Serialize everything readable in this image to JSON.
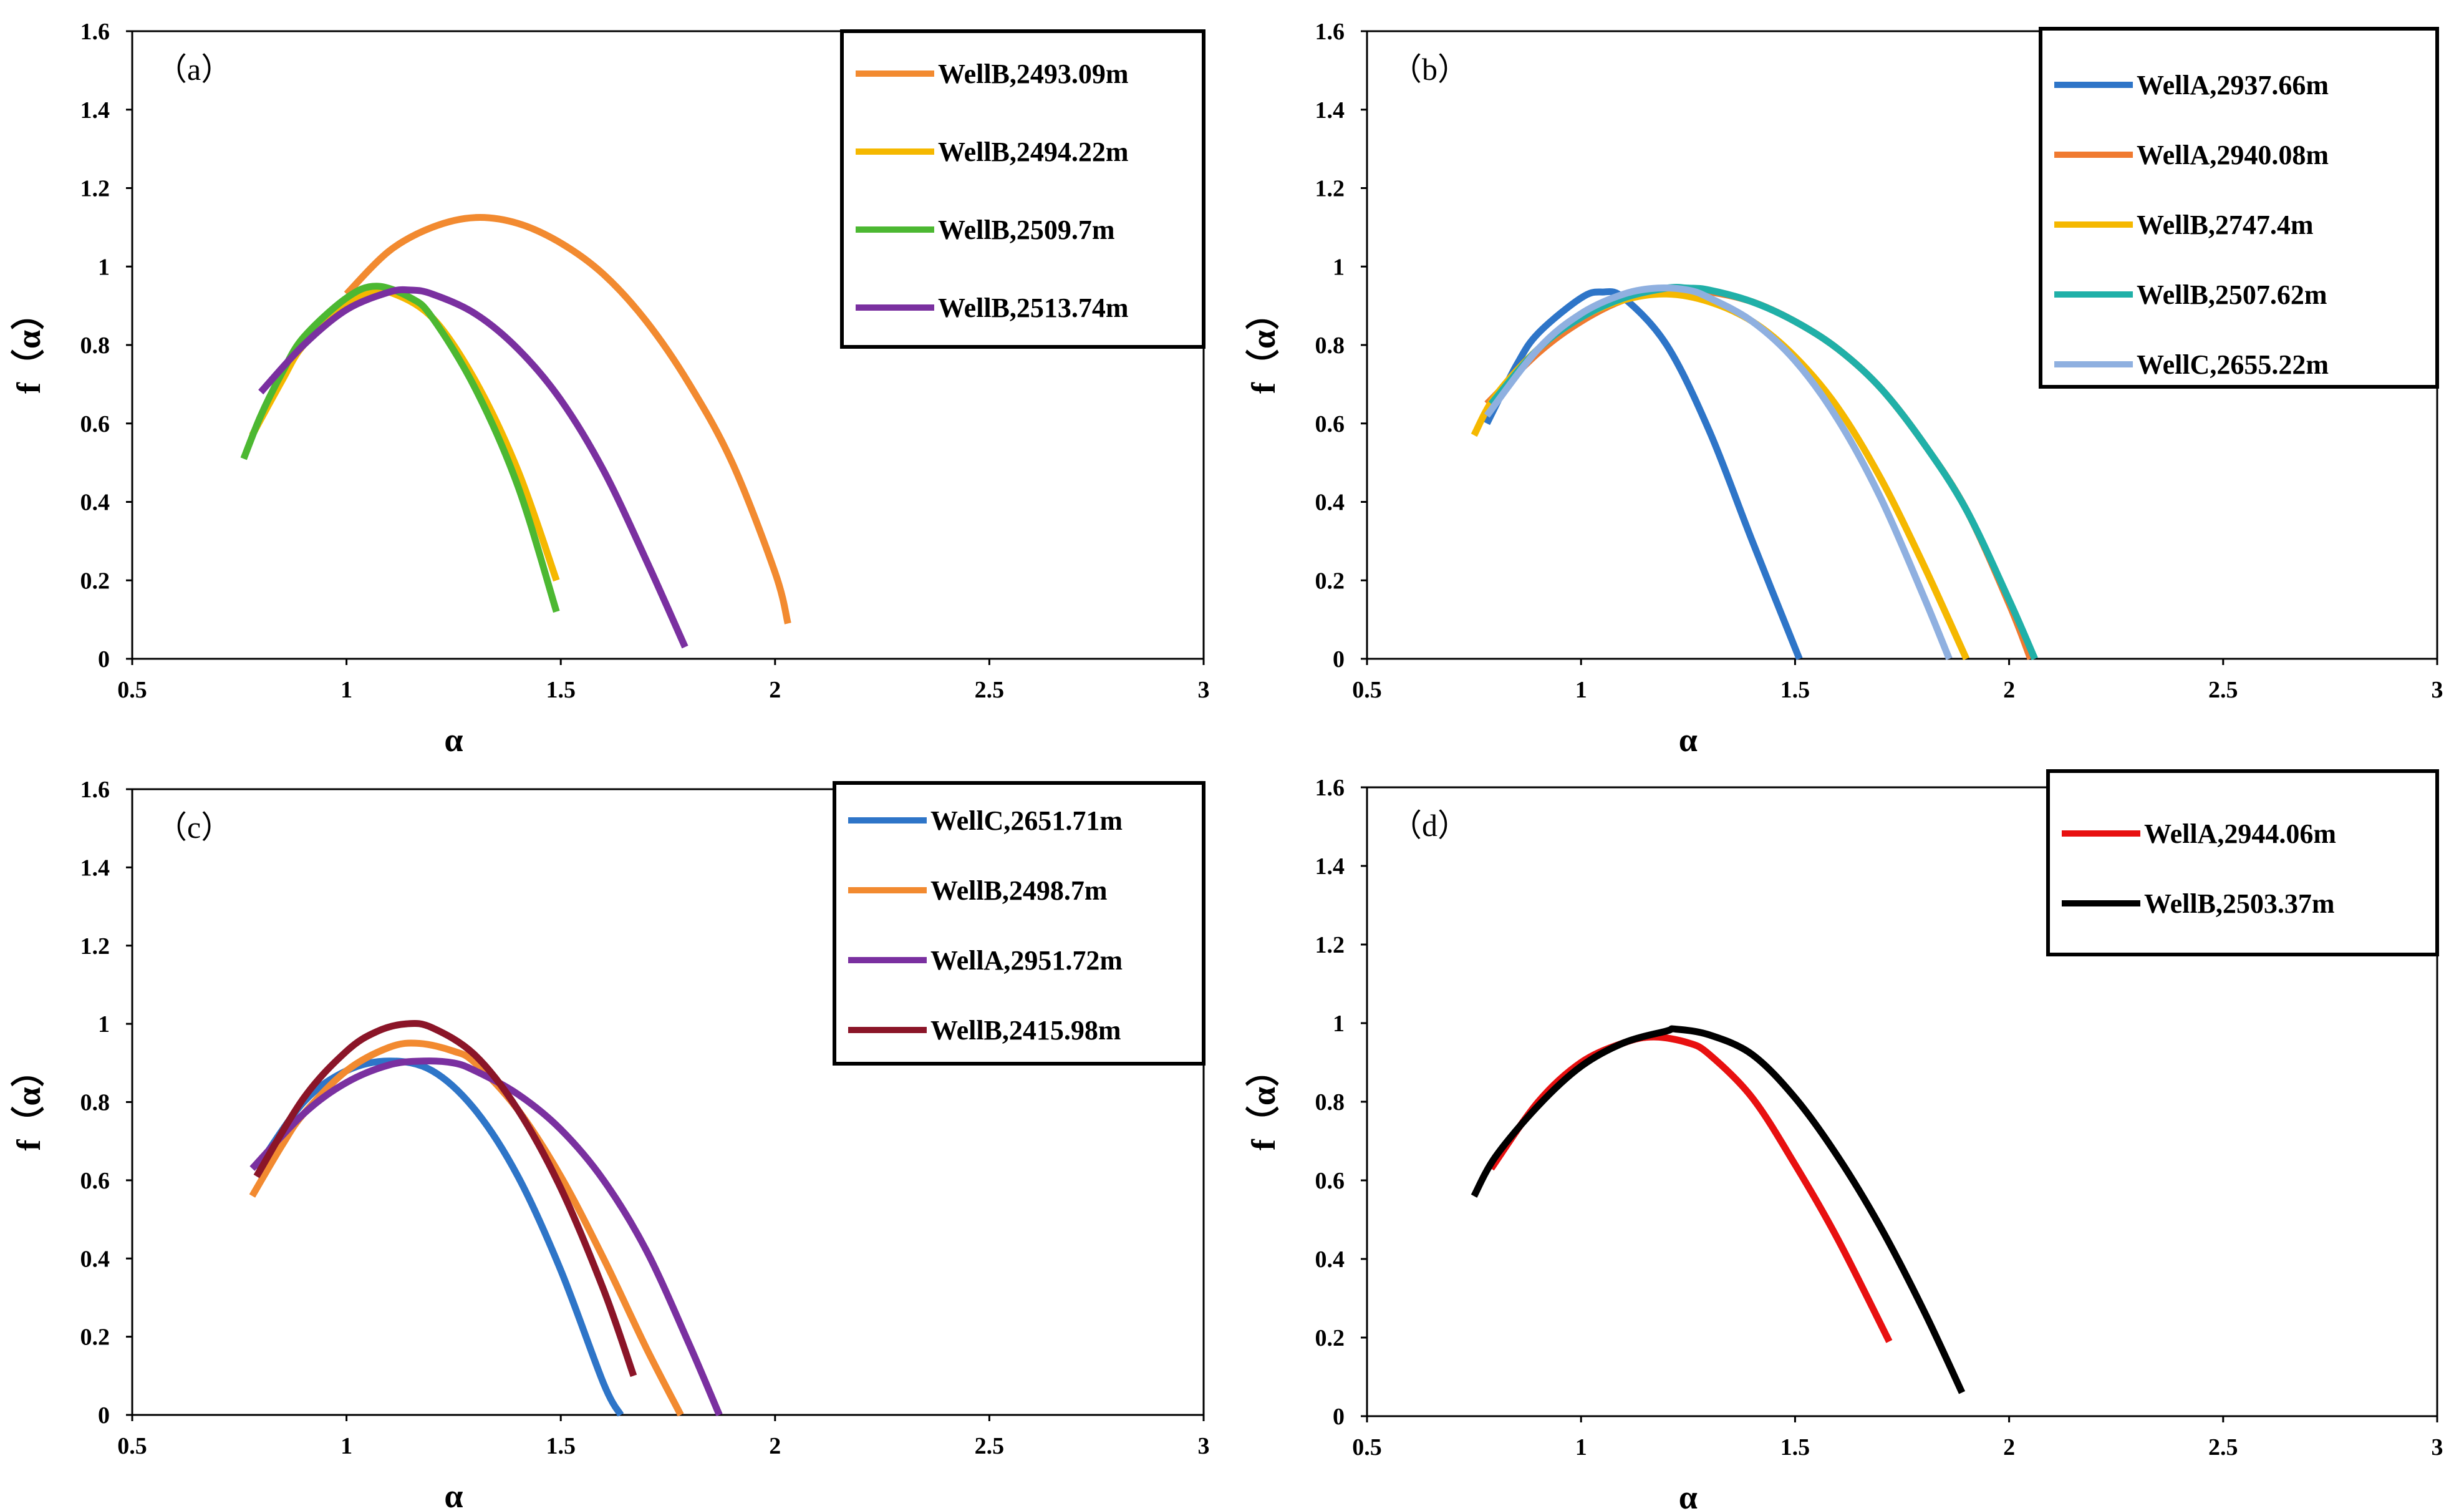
{
  "chart_data": [
    {
      "type": "line",
      "panel_label": "(a)",
      "xlabel": "α",
      "ylabel": "f（α）",
      "xlim": [
        0.5,
        3
      ],
      "ylim": [
        0,
        1.6
      ],
      "xticks": [
        "0.5",
        "1",
        "1.5",
        "2",
        "2.5",
        "3"
      ],
      "yticks": [
        "0",
        "0.2",
        "0.4",
        "0.6",
        "0.8",
        "1",
        "1.2",
        "1.4",
        "1.6"
      ],
      "legend_position": "top-right",
      "grid": false,
      "series": [
        {
          "name": "WellB,2493.09m",
          "color": "#F28A30",
          "x": [
            1.0,
            1.1,
            1.2,
            1.3,
            1.4,
            1.5,
            1.6,
            1.7,
            1.8,
            1.9,
            2.0,
            2.03
          ],
          "y": [
            0.93,
            1.04,
            1.1,
            1.125,
            1.11,
            1.06,
            0.98,
            0.86,
            0.7,
            0.5,
            0.22,
            0.09
          ]
        },
        {
          "name": "WellB,2494.22m",
          "color": "#F5B800",
          "x": [
            0.78,
            0.85,
            0.9,
            1.0,
            1.05,
            1.1,
            1.2,
            1.3,
            1.4,
            1.49
          ],
          "y": [
            0.57,
            0.71,
            0.8,
            0.9,
            0.93,
            0.935,
            0.87,
            0.71,
            0.48,
            0.2
          ]
        },
        {
          "name": "WellB,2509.7m",
          "color": "#4CB832",
          "x": [
            0.76,
            0.8,
            0.85,
            0.9,
            1.0,
            1.07,
            1.15,
            1.2,
            1.3,
            1.4,
            1.49
          ],
          "y": [
            0.51,
            0.62,
            0.73,
            0.82,
            0.92,
            0.95,
            0.92,
            0.87,
            0.69,
            0.44,
            0.12
          ]
        },
        {
          "name": "WellB,2513.74m",
          "color": "#7A30A0",
          "x": [
            0.8,
            0.9,
            1.0,
            1.1,
            1.15,
            1.2,
            1.3,
            1.4,
            1.5,
            1.6,
            1.7,
            1.79
          ],
          "y": [
            0.68,
            0.8,
            0.89,
            0.935,
            0.94,
            0.93,
            0.88,
            0.79,
            0.66,
            0.48,
            0.25,
            0.03
          ]
        }
      ]
    },
    {
      "type": "line",
      "panel_label": "(b)",
      "xlabel": "α",
      "ylabel": "f（α）",
      "xlim": [
        0.5,
        3
      ],
      "ylim": [
        0,
        1.6
      ],
      "xticks": [
        "0.5",
        "1",
        "1.5",
        "2",
        "2.5",
        "3"
      ],
      "yticks": [
        "0",
        "0.2",
        "0.4",
        "0.6",
        "0.8",
        "1",
        "1.2",
        "1.4",
        "1.6"
      ],
      "legend_position": "top-right",
      "grid": false,
      "series": [
        {
          "name": "WellA,2937.66m",
          "color": "#2E75C8",
          "x": [
            0.78,
            0.85,
            0.9,
            1.0,
            1.05,
            1.1,
            1.2,
            1.3,
            1.4,
            1.51
          ],
          "y": [
            0.6,
            0.75,
            0.83,
            0.92,
            0.935,
            0.92,
            0.8,
            0.58,
            0.3,
            0.0
          ]
        },
        {
          "name": "WellA,2940.08m",
          "color": "#F07A30",
          "x": [
            0.78,
            0.9,
            1.0,
            1.1,
            1.2,
            1.3,
            1.4,
            1.5,
            1.6,
            1.7,
            1.8,
            1.9,
            2.0,
            2.05
          ],
          "y": [
            0.65,
            0.78,
            0.86,
            0.915,
            0.94,
            0.935,
            0.91,
            0.86,
            0.79,
            0.69,
            0.55,
            0.38,
            0.14,
            0.0
          ]
        },
        {
          "name": "WellB,2747.4m",
          "color": "#F5B800",
          "x": [
            0.75,
            0.8,
            0.9,
            1.0,
            1.1,
            1.2,
            1.3,
            1.4,
            1.5,
            1.6,
            1.7,
            1.8,
            1.9
          ],
          "y": [
            0.57,
            0.67,
            0.79,
            0.87,
            0.915,
            0.93,
            0.91,
            0.86,
            0.77,
            0.64,
            0.46,
            0.24,
            0.0
          ]
        },
        {
          "name": "WellB,2507.62m",
          "color": "#20B0A8",
          "x": [
            0.79,
            0.9,
            1.0,
            1.1,
            1.2,
            1.25,
            1.3,
            1.4,
            1.5,
            1.6,
            1.7,
            1.8,
            1.9,
            2.0,
            2.06
          ],
          "y": [
            0.65,
            0.79,
            0.87,
            0.92,
            0.945,
            0.945,
            0.94,
            0.91,
            0.86,
            0.79,
            0.69,
            0.55,
            0.38,
            0.15,
            0.0
          ]
        },
        {
          "name": "WellC,2655.22m",
          "color": "#8FB0E0",
          "x": [
            0.78,
            0.9,
            1.0,
            1.1,
            1.18,
            1.25,
            1.3,
            1.4,
            1.5,
            1.6,
            1.7,
            1.8,
            1.86
          ],
          "y": [
            0.62,
            0.79,
            0.88,
            0.93,
            0.945,
            0.94,
            0.92,
            0.86,
            0.76,
            0.61,
            0.41,
            0.16,
            0.0
          ]
        }
      ]
    },
    {
      "type": "line",
      "panel_label": "(c)",
      "xlabel": "α",
      "ylabel": "f（α）",
      "xlim": [
        0.5,
        3
      ],
      "ylim": [
        0,
        1.6
      ],
      "xticks": [
        "0.5",
        "1",
        "1.5",
        "2",
        "2.5",
        "3"
      ],
      "yticks": [
        "0",
        "0.2",
        "0.4",
        "0.6",
        "0.8",
        "1",
        "1.2",
        "1.4",
        "1.6"
      ],
      "legend_position": "top-right",
      "grid": false,
      "series": [
        {
          "name": "WellC,2651.71m",
          "color": "#2E75C8",
          "x": [
            0.79,
            0.9,
            1.0,
            1.1,
            1.2,
            1.3,
            1.4,
            1.5,
            1.6,
            1.64
          ],
          "y": [
            0.63,
            0.8,
            0.88,
            0.905,
            0.88,
            0.78,
            0.61,
            0.37,
            0.08,
            0.0
          ]
        },
        {
          "name": "WellB,2498.7m",
          "color": "#F28A30",
          "x": [
            0.78,
            0.85,
            0.9,
            1.0,
            1.1,
            1.17,
            1.25,
            1.3,
            1.4,
            1.5,
            1.6,
            1.7,
            1.78
          ],
          "y": [
            0.56,
            0.69,
            0.77,
            0.88,
            0.94,
            0.95,
            0.93,
            0.9,
            0.78,
            0.61,
            0.4,
            0.17,
            0.0
          ]
        },
        {
          "name": "WellA,2951.72m",
          "color": "#7A30A0",
          "x": [
            0.78,
            0.9,
            1.0,
            1.1,
            1.18,
            1.25,
            1.3,
            1.4,
            1.5,
            1.6,
            1.7,
            1.8,
            1.87
          ],
          "y": [
            0.63,
            0.77,
            0.85,
            0.895,
            0.905,
            0.9,
            0.88,
            0.82,
            0.73,
            0.6,
            0.42,
            0.18,
            0.0
          ]
        },
        {
          "name": "WellB,2415.98m",
          "color": "#8B1528",
          "x": [
            0.79,
            0.9,
            1.0,
            1.07,
            1.14,
            1.2,
            1.3,
            1.4,
            1.5,
            1.6,
            1.67
          ],
          "y": [
            0.61,
            0.81,
            0.93,
            0.98,
            1.0,
            0.99,
            0.92,
            0.78,
            0.58,
            0.32,
            0.1
          ]
        }
      ]
    },
    {
      "type": "line",
      "panel_label": "(d)",
      "xlabel": "α",
      "ylabel": "f（α）",
      "xlim": [
        0.5,
        3
      ],
      "ylim": [
        0,
        1.6
      ],
      "xticks": [
        "0.5",
        "1",
        "1.5",
        "2",
        "2.5",
        "3"
      ],
      "yticks": [
        "0",
        "0.2",
        "0.4",
        "0.6",
        "0.8",
        "1",
        "1.2",
        "1.4",
        "1.6"
      ],
      "legend_position": "top-right",
      "grid": false,
      "series": [
        {
          "name": "WellA,2944.06m",
          "color": "#E81010",
          "x": [
            0.79,
            0.9,
            1.0,
            1.1,
            1.17,
            1.25,
            1.3,
            1.4,
            1.5,
            1.6,
            1.72
          ],
          "y": [
            0.63,
            0.8,
            0.9,
            0.95,
            0.965,
            0.95,
            0.92,
            0.81,
            0.64,
            0.45,
            0.19
          ]
        },
        {
          "name": "WellB,2503.37m",
          "color": "#000000",
          "x": [
            0.75,
            0.8,
            0.9,
            1.0,
            1.1,
            1.2,
            1.22,
            1.3,
            1.4,
            1.5,
            1.6,
            1.7,
            1.8,
            1.89
          ],
          "y": [
            0.56,
            0.66,
            0.79,
            0.89,
            0.95,
            0.98,
            0.985,
            0.97,
            0.92,
            0.81,
            0.66,
            0.48,
            0.27,
            0.06
          ]
        }
      ]
    }
  ]
}
